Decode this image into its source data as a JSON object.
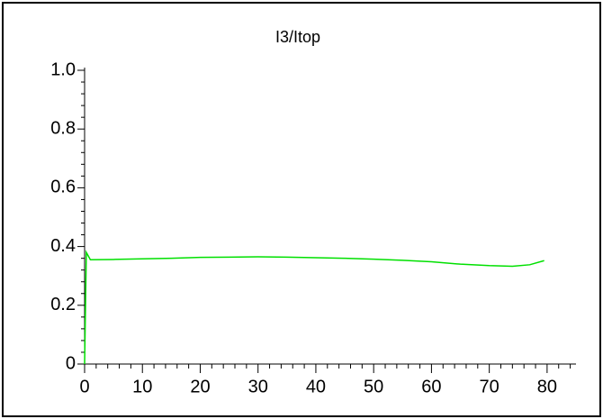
{
  "chart_data": {
    "type": "line",
    "title": "I3/Itop",
    "x": [
      0,
      0.3,
      1,
      5,
      10,
      15,
      20,
      25,
      30,
      35,
      40,
      45,
      50,
      55,
      60,
      65,
      70,
      74,
      77,
      79.5
    ],
    "series": [
      {
        "color": "#00e000",
        "values": [
          0,
          0.38,
          0.355,
          0.356,
          0.358,
          0.36,
          0.363,
          0.364,
          0.365,
          0.364,
          0.362,
          0.36,
          0.357,
          0.353,
          0.348,
          0.34,
          0.335,
          0.333,
          0.338,
          0.352
        ]
      }
    ],
    "xlim": [
      0,
      85
    ],
    "ylim": [
      0,
      1
    ],
    "xticks": [
      0,
      10,
      20,
      30,
      40,
      50,
      60,
      70,
      80
    ],
    "yticks": [
      0,
      0.2,
      0.4,
      0.6,
      0.8,
      {
        "value": 1,
        "label": "1.0"
      }
    ]
  }
}
